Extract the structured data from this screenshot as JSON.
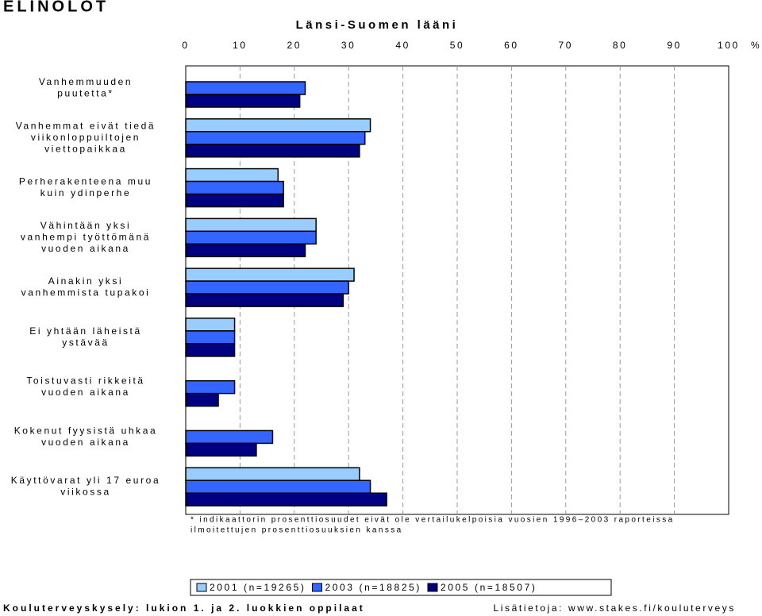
{
  "chart_data": {
    "type": "bar",
    "orientation": "horizontal",
    "title": "ELINOLOT",
    "subtitle": "Länsi-Suomen lääni",
    "x_unit": "%",
    "categories": [
      [
        "Vanhemmuuden",
        "puutetta*"
      ],
      [
        "Vanhemmat eivät tiedä",
        "viikonloppuiltojen",
        "viettopaikkaa"
      ],
      [
        "Perherakenteena muu",
        "kuin ydinperhe"
      ],
      [
        "Vähintään yksi",
        "vanhempi työttömänä",
        "vuoden aikana"
      ],
      [
        "Ainakin yksi",
        "vanhemmista tupakoi"
      ],
      [
        "Ei yhtään läheistä",
        "ystävää"
      ],
      [
        "Toistuvasti rikkeitä",
        "vuoden aikana"
      ],
      [
        "Kokenut fyysistä uhkaa",
        "vuoden aikana"
      ],
      [
        "Käyttövarat yli 17 euroa",
        "viikossa"
      ]
    ],
    "series": [
      {
        "name": "2001 (n=19265)",
        "color": "#99ccff",
        "values": [
          null,
          34,
          17,
          24,
          31,
          9,
          null,
          null,
          32
        ]
      },
      {
        "name": "2003 (n=18825)",
        "color": "#3366ff",
        "values": [
          22,
          33,
          18,
          24,
          30,
          9,
          9,
          16,
          34
        ]
      },
      {
        "name": "2005 (n=18507)",
        "color": "#000080",
        "values": [
          21,
          32,
          18,
          22,
          29,
          9,
          6,
          13,
          37
        ]
      }
    ],
    "xlim": [
      0,
      100
    ],
    "xticks": [
      0,
      10,
      20,
      30,
      40,
      50,
      60,
      70,
      80,
      90,
      100
    ],
    "grid": true,
    "annotation": [
      "* indikaattorin prosenttiosuudet eivät ole vertailukelpoisia vuosien 1996–2003 raporteissa",
      "ilmoitettujen prosenttiosuuksien kanssa"
    ],
    "footer_left": "Kouluterveyskysely: lukion 1. ja 2. luokkien oppilaat",
    "footer_right": "Lisätietoja: www.stakes.fi/kouluterveys"
  }
}
